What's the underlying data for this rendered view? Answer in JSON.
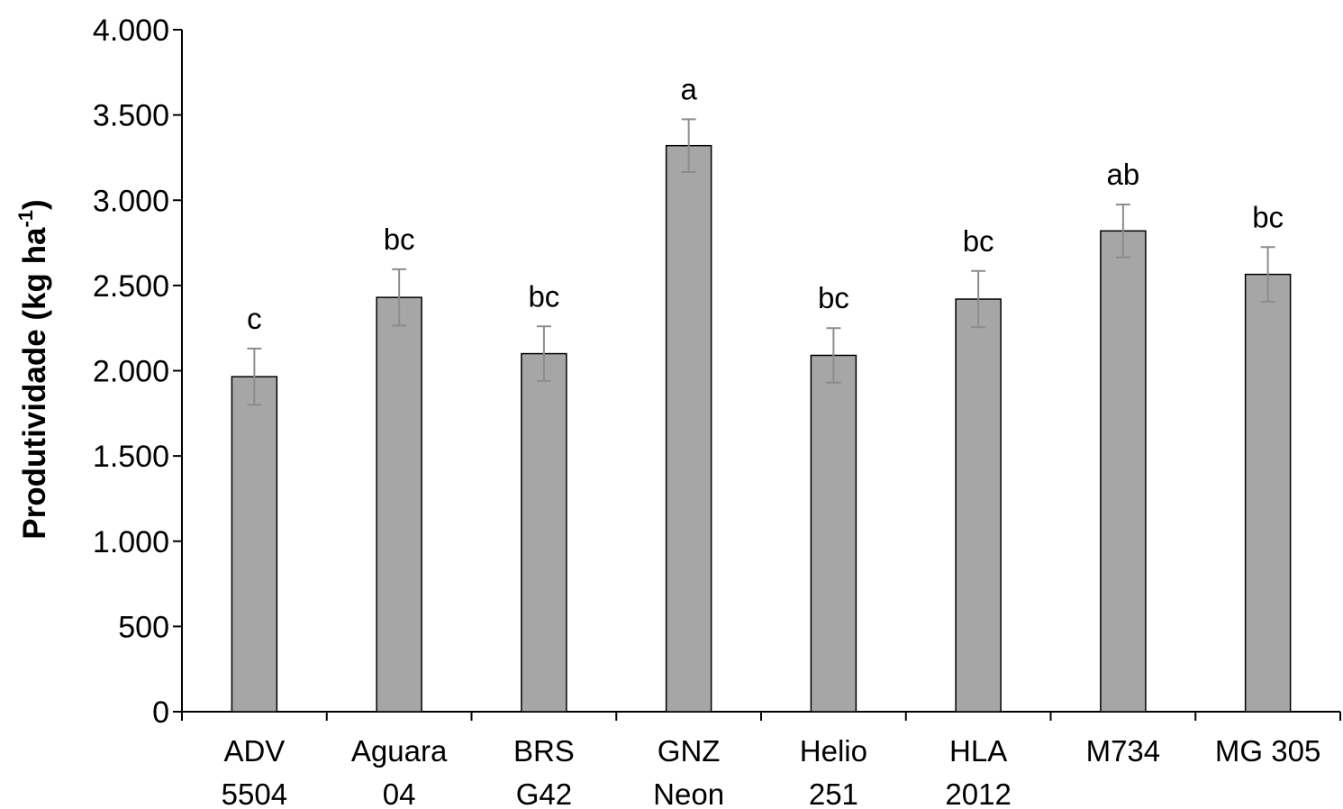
{
  "chart_data": {
    "type": "bar",
    "ylabel": "Produtividade (kg ha",
    "ylabel_sup": "-1",
    "ylabel_close": ")",
    "ylim": [
      0,
      4000
    ],
    "yticks": [
      0,
      500,
      1000,
      1500,
      2000,
      2500,
      3000,
      3500,
      4000
    ],
    "ytick_labels": [
      "0",
      "500",
      "1.000",
      "1.500",
      "2.000",
      "2.500",
      "3.000",
      "3.500",
      "4.000"
    ],
    "categories": [
      {
        "line1": "ADV",
        "line2": "5504"
      },
      {
        "line1": "Aguara",
        "line2": "04"
      },
      {
        "line1": "BRS",
        "line2": "G42"
      },
      {
        "line1": "GNZ",
        "line2": "Neon"
      },
      {
        "line1": "Helio",
        "line2": "251"
      },
      {
        "line1": "HLA",
        "line2": "2012"
      },
      {
        "line1": "M734",
        "line2": ""
      },
      {
        "line1": "MG 305",
        "line2": ""
      }
    ],
    "values": [
      1965,
      2430,
      2100,
      3320,
      2090,
      2420,
      2820,
      2565
    ],
    "errors": [
      165,
      165,
      160,
      155,
      160,
      165,
      155,
      160
    ],
    "significance": [
      "c",
      "bc",
      "bc",
      "a",
      "bc",
      "bc",
      "ab",
      "bc"
    ],
    "bar_color": "#a6a6a6",
    "bar_edge_color": "#000000",
    "error_color": "#8c8c8c",
    "grid": false,
    "legend": false
  }
}
